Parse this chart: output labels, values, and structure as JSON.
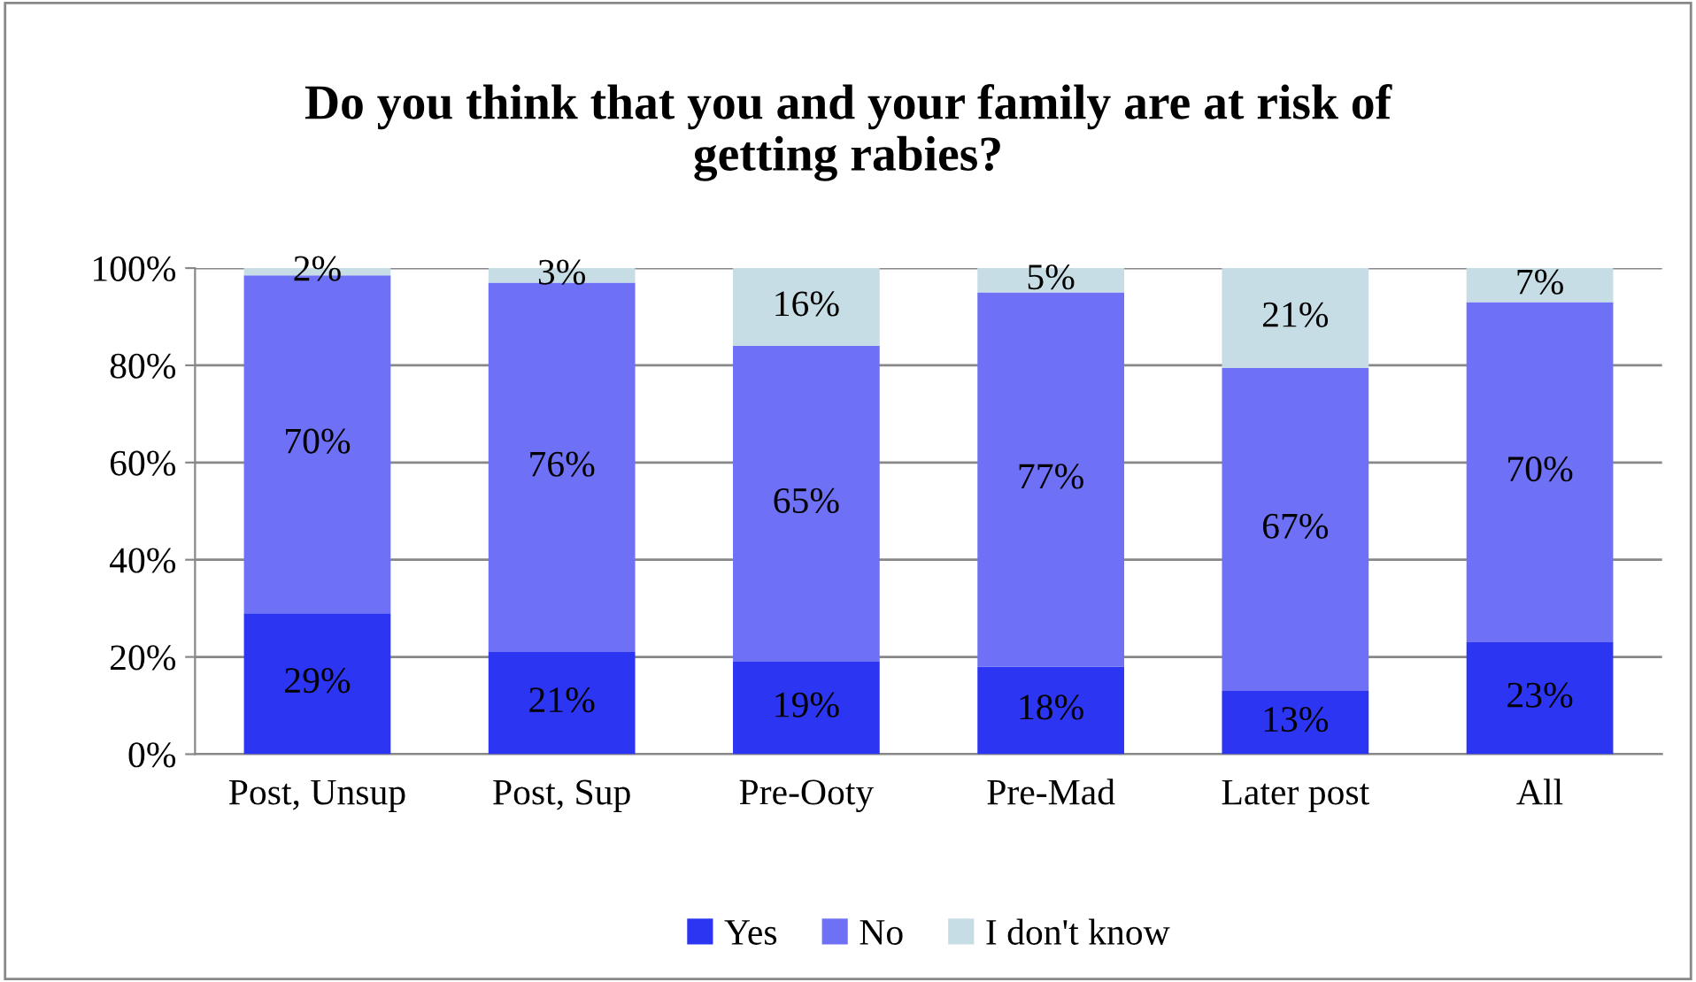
{
  "chart_data": {
    "type": "bar",
    "title": "Do you think that you and your family are at risk of\ngetting rabies?",
    "categories": [
      "Post, Unsup",
      "Post, Sup",
      "Pre-Ooty",
      "Pre-Mad",
      "Later post",
      "All"
    ],
    "stacked": true,
    "series": [
      {
        "name": "Yes",
        "color": "#2b35f2",
        "values": [
          29,
          21,
          19,
          18,
          13,
          23
        ],
        "value_labels": [
          "29%",
          "21%",
          "19%",
          "18%",
          "13%",
          "23%"
        ]
      },
      {
        "name": "No",
        "color": "#6e70f5",
        "values": [
          69.5,
          76,
          65,
          77,
          66.5,
          70
        ],
        "value_labels": [
          "70%",
          "76%",
          "65%",
          "77%",
          "67%",
          "70%"
        ]
      },
      {
        "name": "I don't know",
        "color": "#c6dde6",
        "values": [
          1.5,
          3,
          16,
          5,
          20.5,
          7
        ],
        "value_labels": [
          "2%",
          "3%",
          "16%",
          "5%",
          "21%",
          "7%"
        ]
      }
    ],
    "ylim": [
      0,
      100
    ],
    "yticks": [
      {
        "value": 0,
        "label": "0%"
      },
      {
        "value": 20,
        "label": "20%"
      },
      {
        "value": 40,
        "label": "40%"
      },
      {
        "value": 60,
        "label": "60%"
      },
      {
        "value": 80,
        "label": "80%"
      },
      {
        "value": 100,
        "label": "100%"
      }
    ],
    "grid": "y",
    "legend": "bottom"
  }
}
